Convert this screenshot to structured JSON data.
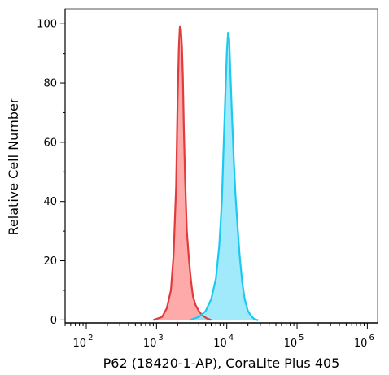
{
  "chart_data": {
    "type": "area",
    "xlabel": "P62 (18420-1-AP), CoraLite Plus 405",
    "ylabel": "Relative Cell Number",
    "x_scale": "log",
    "xlim": [
      50,
      1400000
    ],
    "ylim": [
      -1,
      105
    ],
    "x_ticks": [
      {
        "base": "10",
        "exp": "2"
      },
      {
        "base": "10",
        "exp": "3"
      },
      {
        "base": "10",
        "exp": "4"
      },
      {
        "base": "10",
        "exp": "5"
      },
      {
        "base": "10",
        "exp": "6"
      }
    ],
    "y_ticks": [
      "0",
      "20",
      "40",
      "60",
      "80",
      "100"
    ],
    "grid": false,
    "legend": "none",
    "series": [
      {
        "color": "#e23b3b",
        "fill": "#ff9b9b",
        "x": [
          900,
          1200,
          1400,
          1600,
          1750,
          1900,
          2000,
          2080,
          2150,
          2230,
          2300,
          2370,
          2450,
          2550,
          2700,
          2900,
          3100,
          3300,
          3600,
          4000,
          4500,
          5200,
          6000
        ],
        "y": [
          0,
          1,
          4,
          10,
          22,
          45,
          75,
          92,
          99,
          98,
          92,
          82,
          65,
          48,
          30,
          20,
          13,
          8,
          5,
          3,
          1.5,
          0.5,
          0
        ]
      },
      {
        "color": "#1ec8f0",
        "fill": "#90e6fa",
        "x": [
          3000,
          4000,
          5000,
          6000,
          7000,
          7800,
          8500,
          9000,
          9500,
          10000,
          10400,
          10800,
          11200,
          11800,
          12500,
          13300,
          14200,
          15200,
          16500,
          18000,
          20000,
          22000,
          24000,
          26000,
          28000
        ],
        "y": [
          0,
          1,
          3,
          7,
          14,
          25,
          40,
          58,
          75,
          90,
          97,
          95,
          85,
          70,
          55,
          42,
          32,
          22,
          13,
          7,
          3,
          1.5,
          0.5,
          0,
          0
        ]
      }
    ]
  }
}
